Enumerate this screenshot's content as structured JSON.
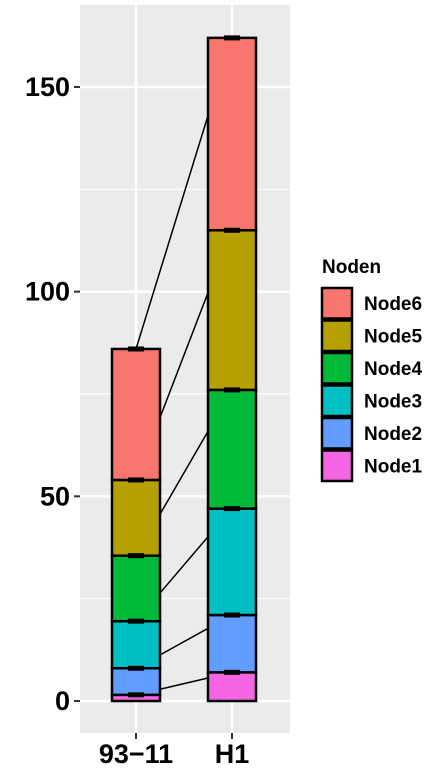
{
  "chart_data": {
    "type": "bar",
    "stacked": true,
    "categories": [
      "93−11",
      "H1"
    ],
    "series": [
      {
        "name": "Node1",
        "color": "#F564E3",
        "values": [
          1.5,
          7.0
        ]
      },
      {
        "name": "Node2",
        "color": "#619CFF",
        "values": [
          6.5,
          14.0
        ]
      },
      {
        "name": "Node3",
        "color": "#00BFC4",
        "values": [
          11.5,
          26.0
        ]
      },
      {
        "name": "Node4",
        "color": "#00BA38",
        "values": [
          16.0,
          29.0
        ]
      },
      {
        "name": "Node5",
        "color": "#B79F00",
        "values": [
          18.5,
          39.0
        ]
      },
      {
        "name": "Node6",
        "color": "#F8766D",
        "values": [
          32.0,
          47.0
        ]
      }
    ],
    "legend_title": "Noden",
    "legend_order": [
      "Node6",
      "Node5",
      "Node4",
      "Node3",
      "Node2",
      "Node1"
    ],
    "legend_position": "right",
    "y_ticks": [
      0,
      50,
      100,
      150
    ],
    "ylim": [
      -8,
      170
    ],
    "title": "",
    "xlabel": "",
    "ylabel": "",
    "grid": true,
    "panel_background": "#EBEBEB"
  }
}
